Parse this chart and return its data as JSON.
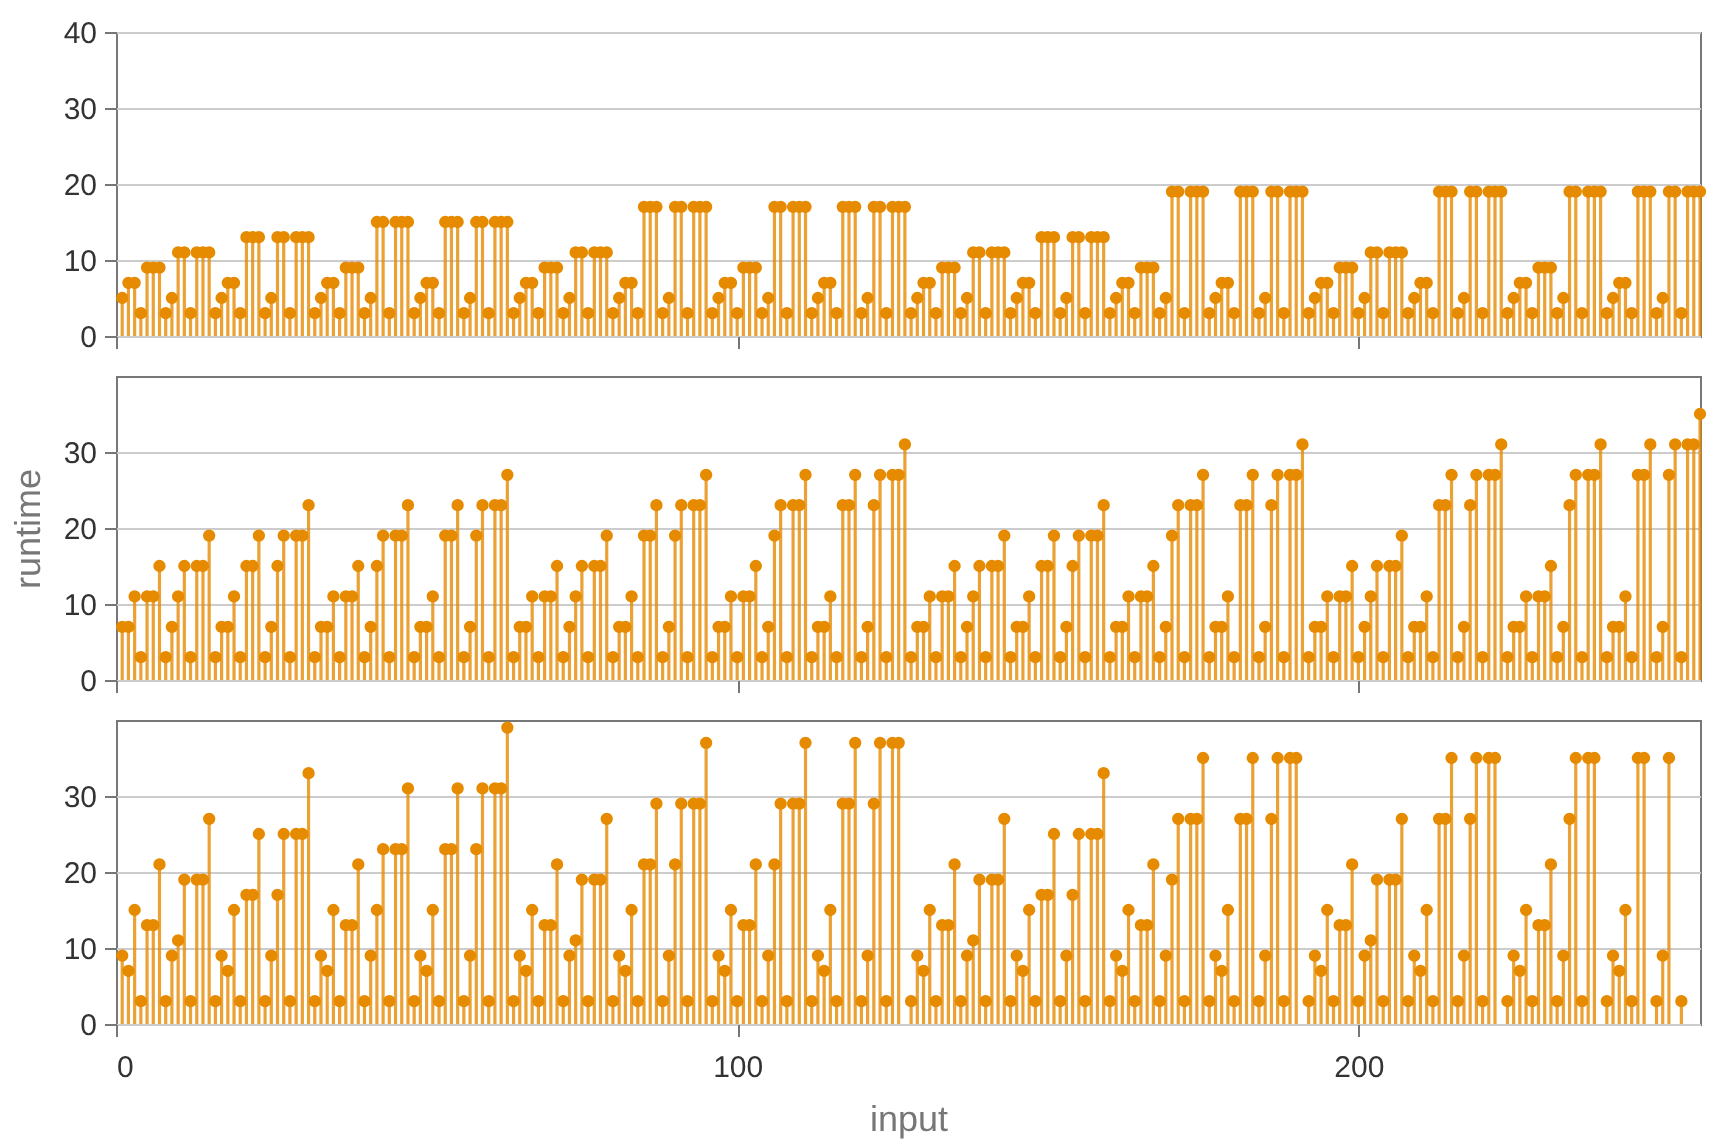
{
  "chart_data": [
    {
      "type": "lollipop",
      "color": "#e68a00",
      "marker": "circle",
      "grid": "y",
      "tick_labels": "y",
      "xlim": [
        0,
        255
      ],
      "xticks": [
        0,
        100,
        200
      ],
      "ylim": [
        0,
        40
      ],
      "yticks": [
        0,
        10,
        20,
        30,
        40
      ],
      "x": [
        1,
        2,
        3,
        4,
        5,
        6,
        7,
        8,
        9,
        10,
        11,
        12,
        13,
        14,
        15,
        16,
        17,
        18,
        19,
        20,
        21,
        22,
        23,
        24,
        25,
        26,
        27,
        28,
        29,
        30,
        31,
        32,
        33,
        34,
        35,
        36,
        37,
        38,
        39,
        40,
        41,
        42,
        43,
        44,
        45,
        46,
        47,
        48,
        49,
        50,
        51,
        52,
        53,
        54,
        55,
        56,
        57,
        58,
        59,
        60,
        61,
        62,
        63,
        64,
        65,
        66,
        67,
        68,
        69,
        70,
        71,
        72,
        73,
        74,
        75,
        76,
        77,
        78,
        79,
        80,
        81,
        82,
        83,
        84,
        85,
        86,
        87,
        88,
        89,
        90,
        91,
        92,
        93,
        94,
        95,
        96,
        97,
        98,
        99,
        100,
        101,
        102,
        103,
        104,
        105,
        106,
        107,
        108,
        109,
        110,
        111,
        112,
        113,
        114,
        115,
        116,
        117,
        118,
        119,
        120,
        121,
        122,
        123,
        124,
        125,
        126,
        127,
        128,
        129,
        130,
        131,
        132,
        133,
        134,
        135,
        136,
        137,
        138,
        139,
        140,
        141,
        142,
        143,
        144,
        145,
        146,
        147,
        148,
        149,
        150,
        151,
        152,
        153,
        154,
        155,
        156,
        157,
        158,
        159,
        160,
        161,
        162,
        163,
        164,
        165,
        166,
        167,
        168,
        169,
        170,
        171,
        172,
        173,
        174,
        175,
        176,
        177,
        178,
        179,
        180,
        181,
        182,
        183,
        184,
        185,
        186,
        187,
        188,
        189,
        190,
        191,
        192,
        193,
        194,
        195,
        196,
        197,
        198,
        199,
        200,
        201,
        202,
        203,
        204,
        205,
        206,
        207,
        208,
        209,
        210,
        211,
        212,
        213,
        214,
        215,
        216,
        217,
        218,
        219,
        220,
        221,
        222,
        223,
        224,
        225,
        226,
        227,
        228,
        229,
        230,
        231,
        232,
        233,
        234,
        235,
        236,
        237,
        238,
        239,
        240,
        241,
        242,
        243,
        244,
        245,
        246,
        247,
        248,
        249,
        250,
        251,
        252,
        253,
        254,
        255
      ],
      "values": [
        5,
        7,
        7,
        3,
        9,
        9,
        9,
        3,
        5,
        11,
        11,
        3,
        11,
        11,
        11,
        3,
        5,
        7,
        7,
        3,
        13,
        13,
        13,
        3,
        5,
        13,
        13,
        3,
        13,
        13,
        13,
        3,
        5,
        7,
        7,
        3,
        9,
        9,
        9,
        3,
        5,
        15,
        15,
        3,
        15,
        15,
        15,
        3,
        5,
        7,
        7,
        3,
        15,
        15,
        15,
        3,
        5,
        15,
        15,
        3,
        15,
        15,
        15,
        3,
        5,
        7,
        7,
        3,
        9,
        9,
        9,
        3,
        5,
        11,
        11,
        3,
        11,
        11,
        11,
        3,
        5,
        7,
        7,
        3,
        17,
        17,
        17,
        3,
        5,
        17,
        17,
        3,
        17,
        17,
        17,
        3,
        5,
        7,
        7,
        3,
        9,
        9,
        9,
        3,
        5,
        17,
        17,
        3,
        17,
        17,
        17,
        3,
        5,
        7,
        7,
        3,
        17,
        17,
        17,
        3,
        5,
        17,
        17,
        3,
        17,
        17,
        17,
        3,
        5,
        7,
        7,
        3,
        9,
        9,
        9,
        3,
        5,
        11,
        11,
        3,
        11,
        11,
        11,
        3,
        5,
        7,
        7,
        3,
        13,
        13,
        13,
        3,
        5,
        13,
        13,
        3,
        13,
        13,
        13,
        3,
        5,
        7,
        7,
        3,
        9,
        9,
        9,
        3,
        5,
        19,
        19,
        3,
        19,
        19,
        19,
        3,
        5,
        7,
        7,
        3,
        19,
        19,
        19,
        3,
        5,
        19,
        19,
        3,
        19,
        19,
        19,
        3,
        5,
        7,
        7,
        3,
        9,
        9,
        9,
        3,
        5,
        11,
        11,
        3,
        11,
        11,
        11,
        3,
        5,
        7,
        7,
        3,
        19,
        19,
        19,
        3,
        5,
        19,
        19,
        3,
        19,
        19,
        19,
        3,
        5,
        7,
        7,
        3,
        9,
        9,
        9,
        3,
        5,
        19,
        19,
        3,
        19,
        19,
        19,
        3,
        5,
        7,
        7,
        3,
        19,
        19,
        19,
        3,
        5,
        19,
        19,
        3,
        19,
        19,
        19
      ]
    },
    {
      "type": "lollipop",
      "color": "#e68a00",
      "marker": "circle",
      "grid": "y",
      "tick_labels": "y",
      "ylabel": "runtime",
      "xlim": [
        0,
        255
      ],
      "xticks": [
        0,
        100,
        200
      ],
      "ylim": [
        0,
        40
      ],
      "yticks": [
        0,
        10,
        20,
        30
      ],
      "x": [
        1,
        2,
        3,
        4,
        5,
        6,
        7,
        8,
        9,
        10,
        11,
        12,
        13,
        14,
        15,
        16,
        17,
        18,
        19,
        20,
        21,
        22,
        23,
        24,
        25,
        26,
        27,
        28,
        29,
        30,
        31,
        32,
        33,
        34,
        35,
        36,
        37,
        38,
        39,
        40,
        41,
        42,
        43,
        44,
        45,
        46,
        47,
        48,
        49,
        50,
        51,
        52,
        53,
        54,
        55,
        56,
        57,
        58,
        59,
        60,
        61,
        62,
        63,
        64,
        65,
        66,
        67,
        68,
        69,
        70,
        71,
        72,
        73,
        74,
        75,
        76,
        77,
        78,
        79,
        80,
        81,
        82,
        83,
        84,
        85,
        86,
        87,
        88,
        89,
        90,
        91,
        92,
        93,
        94,
        95,
        96,
        97,
        98,
        99,
        100,
        101,
        102,
        103,
        104,
        105,
        106,
        107,
        108,
        109,
        110,
        111,
        112,
        113,
        114,
        115,
        116,
        117,
        118,
        119,
        120,
        121,
        122,
        123,
        124,
        125,
        126,
        127,
        128,
        129,
        130,
        131,
        132,
        133,
        134,
        135,
        136,
        137,
        138,
        139,
        140,
        141,
        142,
        143,
        144,
        145,
        146,
        147,
        148,
        149,
        150,
        151,
        152,
        153,
        154,
        155,
        156,
        157,
        158,
        159,
        160,
        161,
        162,
        163,
        164,
        165,
        166,
        167,
        168,
        169,
        170,
        171,
        172,
        173,
        174,
        175,
        176,
        177,
        178,
        179,
        180,
        181,
        182,
        183,
        184,
        185,
        186,
        187,
        188,
        189,
        190,
        191,
        192,
        193,
        194,
        195,
        196,
        197,
        198,
        199,
        200,
        201,
        202,
        203,
        204,
        205,
        206,
        207,
        208,
        209,
        210,
        211,
        212,
        213,
        214,
        215,
        216,
        217,
        218,
        219,
        220,
        221,
        222,
        223,
        224,
        225,
        226,
        227,
        228,
        229,
        230,
        231,
        232,
        233,
        234,
        235,
        236,
        237,
        238,
        239,
        240,
        241,
        242,
        243,
        244,
        245,
        246,
        247,
        248,
        249,
        250,
        251,
        252,
        253,
        254,
        255
      ],
      "values": [
        7,
        7,
        11,
        3,
        11,
        11,
        15,
        3,
        7,
        11,
        15,
        3,
        15,
        15,
        19,
        3,
        7,
        7,
        11,
        3,
        15,
        15,
        19,
        3,
        7,
        15,
        19,
        3,
        19,
        19,
        23,
        3,
        7,
        7,
        11,
        3,
        11,
        11,
        15,
        3,
        7,
        15,
        19,
        3,
        19,
        19,
        23,
        3,
        7,
        7,
        11,
        3,
        19,
        19,
        23,
        3,
        7,
        19,
        23,
        3,
        23,
        23,
        27,
        3,
        7,
        7,
        11,
        3,
        11,
        11,
        15,
        3,
        7,
        11,
        15,
        3,
        15,
        15,
        19,
        3,
        7,
        7,
        11,
        3,
        19,
        19,
        23,
        3,
        7,
        19,
        23,
        3,
        23,
        23,
        27,
        3,
        7,
        7,
        11,
        3,
        11,
        11,
        15,
        3,
        7,
        19,
        23,
        3,
        23,
        23,
        27,
        3,
        7,
        7,
        11,
        3,
        23,
        23,
        27,
        3,
        7,
        23,
        27,
        3,
        27,
        27,
        31,
        3,
        7,
        7,
        11,
        3,
        11,
        11,
        15,
        3,
        7,
        11,
        15,
        3,
        15,
        15,
        19,
        3,
        7,
        7,
        11,
        3,
        15,
        15,
        19,
        3,
        7,
        15,
        19,
        3,
        19,
        19,
        23,
        3,
        7,
        7,
        11,
        3,
        11,
        11,
        15,
        3,
        7,
        19,
        23,
        3,
        23,
        23,
        27,
        3,
        7,
        7,
        11,
        3,
        23,
        23,
        27,
        3,
        7,
        23,
        27,
        3,
        27,
        27,
        31,
        3,
        7,
        7,
        11,
        3,
        11,
        11,
        15,
        3,
        7,
        11,
        15,
        3,
        15,
        15,
        19,
        3,
        7,
        7,
        11,
        3,
        23,
        23,
        27,
        3,
        7,
        23,
        27,
        3,
        27,
        27,
        31,
        3,
        7,
        7,
        11,
        3,
        11,
        11,
        15,
        3,
        7,
        23,
        27,
        3,
        27,
        27,
        31,
        3,
        7,
        7,
        11,
        3,
        27,
        27,
        31,
        3,
        7,
        27,
        31,
        3,
        31,
        31,
        35
      ]
    },
    {
      "type": "lollipop",
      "color": "#e68a00",
      "marker": "circle",
      "grid": "y",
      "xlabel": "input",
      "xlim": [
        0,
        255
      ],
      "xticks": [
        0,
        100,
        200
      ],
      "ylim": [
        0,
        40
      ],
      "yticks": [
        0,
        10,
        20,
        30
      ],
      "x": [
        1,
        2,
        3,
        4,
        5,
        6,
        7,
        8,
        9,
        10,
        11,
        12,
        13,
        14,
        15,
        16,
        17,
        18,
        19,
        20,
        21,
        22,
        23,
        24,
        25,
        26,
        27,
        28,
        29,
        30,
        31,
        32,
        33,
        34,
        35,
        36,
        37,
        38,
        39,
        40,
        41,
        42,
        43,
        44,
        45,
        46,
        47,
        48,
        49,
        50,
        51,
        52,
        53,
        54,
        55,
        56,
        57,
        58,
        59,
        60,
        61,
        62,
        63,
        64,
        65,
        66,
        67,
        68,
        69,
        70,
        71,
        72,
        73,
        74,
        75,
        76,
        77,
        78,
        79,
        80,
        81,
        82,
        83,
        84,
        85,
        86,
        87,
        88,
        89,
        90,
        91,
        92,
        93,
        94,
        95,
        96,
        97,
        98,
        99,
        100,
        101,
        102,
        103,
        104,
        105,
        106,
        107,
        108,
        109,
        110,
        111,
        112,
        113,
        114,
        115,
        116,
        117,
        118,
        119,
        120,
        121,
        122,
        123,
        124,
        125,
        126,
        127,
        128,
        129,
        130,
        131,
        132,
        133,
        134,
        135,
        136,
        137,
        138,
        139,
        140,
        141,
        142,
        143,
        144,
        145,
        146,
        147,
        148,
        149,
        150,
        151,
        152,
        153,
        154,
        155,
        156,
        157,
        158,
        159,
        160,
        161,
        162,
        163,
        164,
        165,
        166,
        167,
        168,
        169,
        170,
        171,
        172,
        173,
        174,
        175,
        176,
        177,
        178,
        179,
        180,
        181,
        182,
        183,
        184,
        185,
        186,
        187,
        188,
        189,
        190,
        191,
        192,
        193,
        194,
        195,
        196,
        197,
        198,
        199,
        200,
        201,
        202,
        203,
        204,
        205,
        206,
        207,
        208,
        209,
        210,
        211,
        212,
        213,
        214,
        215,
        216,
        217,
        218,
        219,
        220,
        221,
        222,
        223,
        224,
        225,
        226,
        227,
        228,
        229,
        230,
        231,
        232,
        233,
        234,
        235,
        236,
        237,
        238,
        239,
        240,
        241,
        242,
        243,
        244,
        245,
        246,
        247,
        248,
        249,
        250,
        251,
        252
      ],
      "values": [
        9,
        7,
        15,
        3,
        13,
        13,
        21,
        3,
        9,
        11,
        19,
        3,
        19,
        19,
        27,
        3,
        9,
        7,
        15,
        3,
        17,
        17,
        25,
        3,
        9,
        17,
        25,
        3,
        25,
        25,
        33,
        3,
        9,
        7,
        15,
        3,
        13,
        13,
        21,
        3,
        9,
        15,
        23,
        3,
        23,
        23,
        31,
        3,
        9,
        7,
        15,
        3,
        23,
        23,
        31,
        3,
        9,
        23,
        31,
        3,
        31,
        31,
        39,
        3,
        9,
        7,
        15,
        3,
        13,
        13,
        21,
        3,
        9,
        11,
        19,
        3,
        19,
        19,
        27,
        3,
        9,
        7,
        15,
        3,
        21,
        21,
        29,
        3,
        9,
        21,
        29,
        3,
        29,
        29,
        37,
        3,
        9,
        7,
        15,
        3,
        13,
        13,
        21,
        3,
        9,
        21,
        29,
        3,
        29,
        29,
        37,
        3,
        9,
        7,
        15,
        3,
        29,
        29,
        37,
        3,
        9,
        29,
        37,
        3,
        37,
        37,
        null,
        3,
        9,
        7,
        15,
        3,
        13,
        13,
        21,
        3,
        9,
        11,
        19,
        3,
        19,
        19,
        27,
        3,
        9,
        7,
        15,
        3,
        17,
        17,
        25,
        3,
        9,
        17,
        25,
        3,
        25,
        25,
        33,
        3,
        9,
        7,
        15,
        3,
        13,
        13,
        21,
        3,
        9,
        19,
        27,
        3,
        27,
        27,
        35,
        3,
        9,
        7,
        15,
        3,
        27,
        27,
        35,
        3,
        9,
        27,
        35,
        3,
        35,
        35,
        null,
        3,
        9,
        7,
        15,
        3,
        13,
        13,
        21,
        3,
        9,
        11,
        19,
        3,
        19,
        19,
        27,
        3,
        9,
        7,
        15,
        3,
        27,
        27,
        35,
        3,
        9,
        27,
        35,
        3,
        35,
        35,
        null,
        3,
        9,
        7,
        15,
        3,
        13,
        13,
        21,
        3,
        9,
        27,
        35,
        3,
        35,
        35,
        null,
        3,
        9,
        7,
        15,
        3,
        35,
        35,
        null,
        3,
        9,
        35,
        null,
        3
      ]
    }
  ]
}
